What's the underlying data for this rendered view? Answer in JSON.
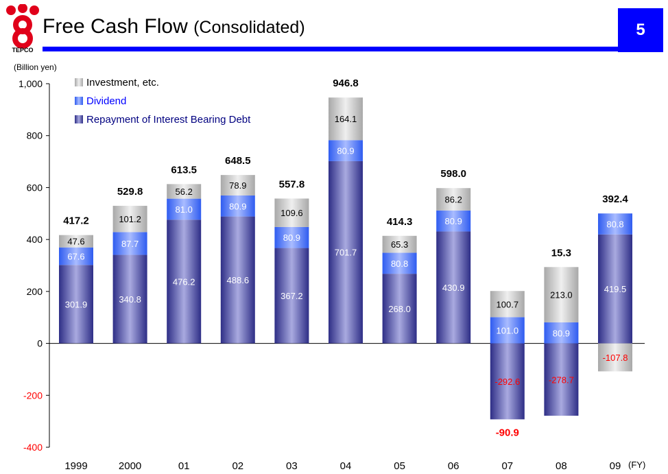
{
  "header": {
    "title": "Free Cash Flow",
    "subtitle": "(Consolidated)",
    "page_number": "5",
    "logo_text": "TEPCO",
    "accent_color": "#0000ff",
    "logo_color": "#e0001a"
  },
  "chart_data": {
    "type": "bar",
    "stacked": true,
    "ylabel": "(Billion yen)",
    "xlabel": "(FY)",
    "ylim": [
      -400,
      1000
    ],
    "yticks": [
      "1,000",
      "800",
      "600",
      "400",
      "200",
      "0",
      "-200",
      "-400"
    ],
    "ytick_values": [
      1000,
      800,
      600,
      400,
      200,
      0,
      -200,
      -400
    ],
    "grid": false,
    "legend_position": "top-left",
    "categories": [
      "1999",
      "2000",
      "01",
      "02",
      "03",
      "04",
      "05",
      "06",
      "07",
      "08",
      "09"
    ],
    "series": [
      {
        "name": "Repayment of Interest Bearing Debt",
        "color": "#3a3a9a",
        "values": [
          301.9,
          340.8,
          476.2,
          488.6,
          367.2,
          701.7,
          268.0,
          430.9,
          -292.6,
          -278.7,
          419.5
        ],
        "labels": [
          "301.9",
          "340.8",
          "476.2",
          "488.6",
          "367.2",
          "701.7",
          "268.0",
          "430.9",
          "-292.6",
          "-278.7",
          "419.5"
        ]
      },
      {
        "name": "Dividend",
        "color": "#3366ff",
        "values": [
          67.6,
          87.7,
          81.0,
          80.9,
          80.9,
          80.9,
          80.8,
          80.9,
          101.0,
          80.9,
          80.8
        ],
        "labels": [
          "67.6",
          "87.7",
          "81.0",
          "80.9",
          "80.9",
          "80.9",
          "80.8",
          "80.9",
          "101.0",
          "80.9",
          "80.8"
        ]
      },
      {
        "name": "Investment, etc.",
        "color": "#b0b0b0",
        "values": [
          47.6,
          101.2,
          56.2,
          78.9,
          109.6,
          164.1,
          65.3,
          86.2,
          100.7,
          213.0,
          -107.8
        ],
        "labels": [
          "47.6",
          "101.2",
          "56.2",
          "78.9",
          "109.6",
          "164.1",
          "65.3",
          "86.2",
          "100.7",
          "213.0",
          "-107.8"
        ]
      }
    ],
    "totals": [
      417.2,
      529.8,
      613.5,
      648.5,
      557.8,
      946.8,
      414.3,
      598.0,
      -90.9,
      15.3,
      392.4
    ],
    "total_labels": [
      "417.2",
      "529.8",
      "613.5",
      "648.5",
      "557.8",
      "946.8",
      "414.3",
      "598.0",
      "-90.9",
      "15.3",
      "392.4"
    ],
    "legend": [
      "Investment, etc.",
      "Dividend",
      "Repayment of Interest Bearing Debt"
    ]
  }
}
